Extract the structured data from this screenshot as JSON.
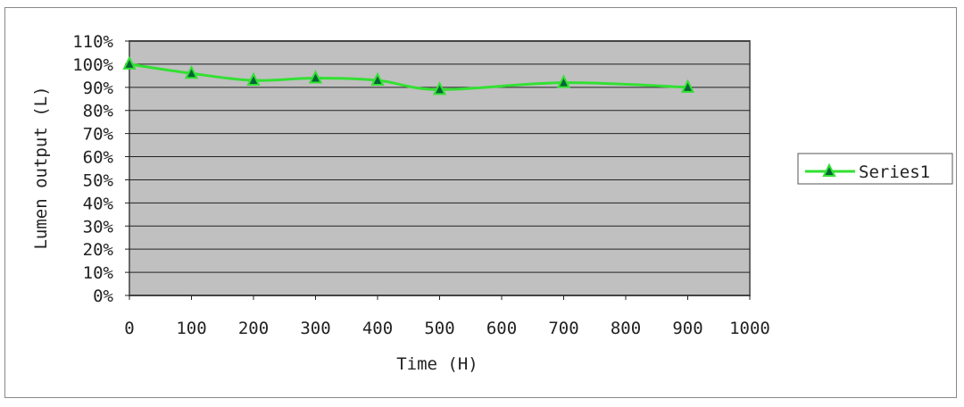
{
  "chart_data": {
    "type": "line",
    "title": "",
    "xlabel": "Time (H)",
    "ylabel": "Lumen output (L)",
    "xlim": [
      0,
      1000
    ],
    "ylim": [
      0,
      110
    ],
    "x_ticks": [
      "0",
      "100",
      "200",
      "300",
      "400",
      "500",
      "600",
      "700",
      "800",
      "900",
      "1000"
    ],
    "y_ticks": [
      "0%",
      "10%",
      "20%",
      "30%",
      "40%",
      "50%",
      "60%",
      "70%",
      "80%",
      "90%",
      "100%",
      "110%"
    ],
    "grid": true,
    "legend": "right",
    "plot_background": "#c0c0c0",
    "series": [
      {
        "name": "Series1",
        "color": "#33e033",
        "marker": "triangle",
        "x": [
          0,
          100,
          200,
          300,
          400,
          500,
          700,
          900
        ],
        "y": [
          100,
          96,
          93,
          94,
          93,
          89,
          92,
          90
        ]
      }
    ]
  }
}
